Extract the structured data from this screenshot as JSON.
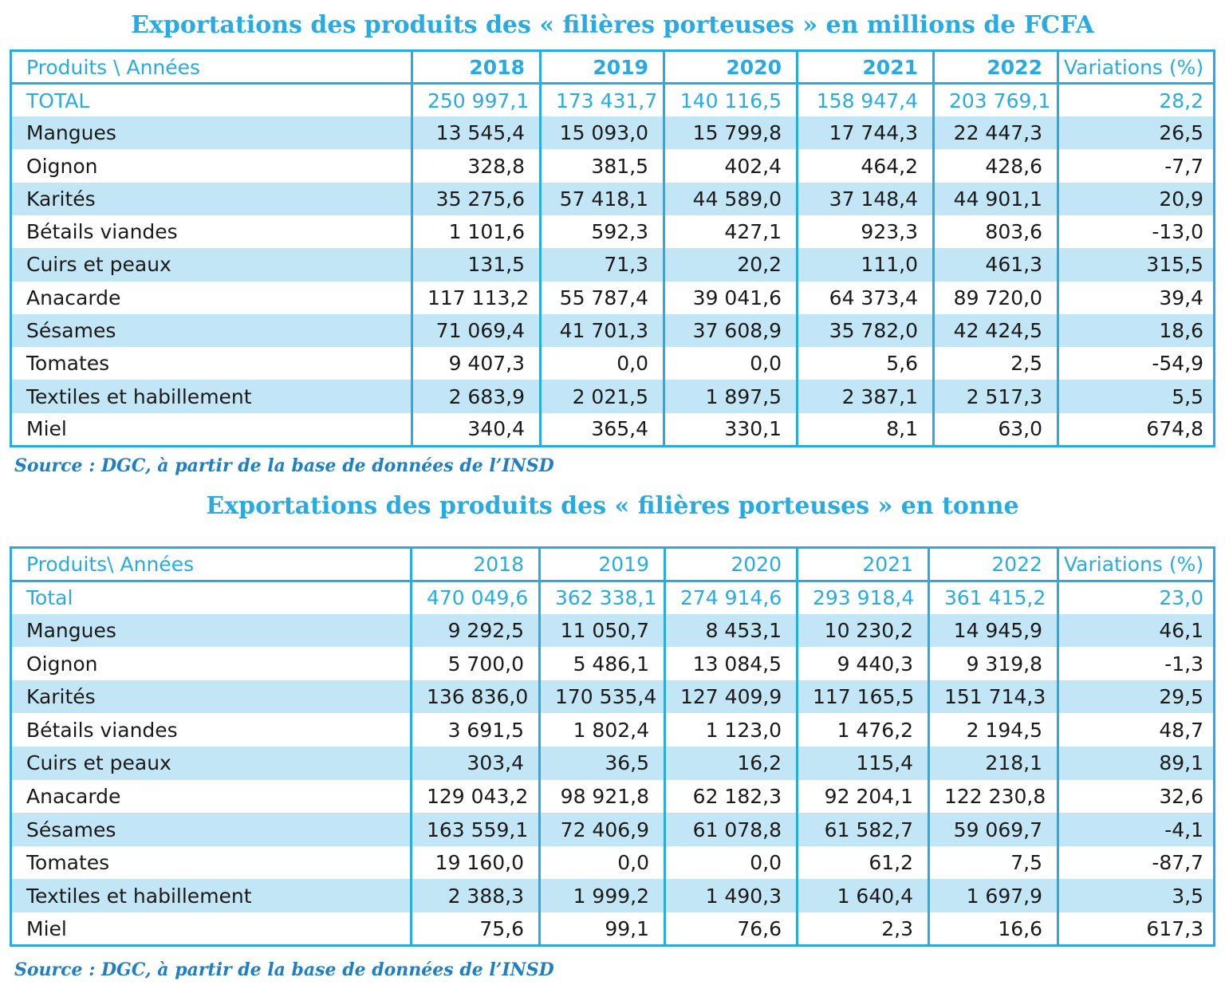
{
  "table1": {
    "title": "Exportations des produits des « filières porteuses » en millions de FCFA",
    "header": [
      "Produits \\ Années",
      "2018",
      "2019",
      "2020",
      "2021",
      "2022",
      "Variations (%)"
    ],
    "rows": [
      {
        "name": "TOTAL",
        "values": [
          "250 997,1",
          "173 431,7",
          "140 116,5",
          "158 947,4",
          "203 769,1",
          "28,2"
        ]
      },
      {
        "name": "Mangues",
        "values": [
          "13 545,4",
          "15 093,0",
          "15 799,8",
          "17 744,3",
          "22 447,3",
          "26,5"
        ]
      },
      {
        "name": "Oignon",
        "values": [
          "328,8",
          "381,5",
          "402,4",
          "464,2",
          "428,6",
          "-7,7"
        ]
      },
      {
        "name": "Karités",
        "values": [
          "35 275,6",
          "57 418,1",
          "44 589,0",
          "37 148,4",
          "44 901,1",
          "20,9"
        ]
      },
      {
        "name": "Bétails viandes",
        "values": [
          "1 101,6",
          "592,3",
          "427,1",
          "923,3",
          "803,6",
          "-13,0"
        ]
      },
      {
        "name": "Cuirs et peaux",
        "values": [
          "131,5",
          "71,3",
          "20,2",
          "111,0",
          "461,3",
          "315,5"
        ]
      },
      {
        "name": "Anacarde",
        "values": [
          "117 113,2",
          "55 787,4",
          "39 041,6",
          "64 373,4",
          "89 720,0",
          "39,4"
        ]
      },
      {
        "name": "Sésames",
        "values": [
          "71 069,4",
          "41 701,3",
          "37 608,9",
          "35 782,0",
          "42 424,5",
          "18,6"
        ]
      },
      {
        "name": "Tomates",
        "values": [
          "9 407,3",
          "0,0",
          "0,0",
          "5,6",
          "2,5",
          "-54,9"
        ]
      },
      {
        "name": "Textiles et habillement",
        "values": [
          "2 683,9",
          "2 021,5",
          "1 897,5",
          "2 387,1",
          "2 517,3",
          "5,5"
        ]
      },
      {
        "name": "Miel",
        "values": [
          "340,4",
          "365,4",
          "330,1",
          "8,1",
          "63,0",
          "674,8"
        ]
      }
    ],
    "source": "Source : DGC, à partir de la base de données de l’INSD"
  },
  "table2": {
    "title": "Exportations des produits des « filières porteuses » en tonne",
    "header": [
      "Produits\\ Années",
      "2018",
      "2019",
      "2020",
      "2021",
      "2022",
      "Variations (%)"
    ],
    "rows": [
      {
        "name": "Total",
        "values": [
          "470 049,6",
          "362 338,1",
          "274 914,6",
          "293 918,4",
          "361 415,2",
          "23,0"
        ]
      },
      {
        "name": "Mangues",
        "values": [
          "9 292,5",
          "11 050,7",
          "8 453,1",
          "10 230,2",
          "14 945,9",
          "46,1"
        ]
      },
      {
        "name": "Oignon",
        "values": [
          "5 700,0",
          "5 486,1",
          "13 084,5",
          "9 440,3",
          "9 319,8",
          "-1,3"
        ]
      },
      {
        "name": "Karités",
        "values": [
          "136 836,0",
          "170 535,4",
          "127 409,9",
          "117 165,5",
          "151 714,3",
          "29,5"
        ]
      },
      {
        "name": "Bétails viandes",
        "values": [
          "3 691,5",
          "1 802,4",
          "1 123,0",
          "1 476,2",
          "2 194,5",
          "48,7"
        ]
      },
      {
        "name": "Cuirs et peaux",
        "values": [
          "303,4",
          "36,5",
          "16,2",
          "115,4",
          "218,1",
          "89,1"
        ]
      },
      {
        "name": "Anacarde",
        "values": [
          "129 043,2",
          "98 921,8",
          "62 182,3",
          "92 204,1",
          "122 230,8",
          "32,6"
        ]
      },
      {
        "name": "Sésames",
        "values": [
          "163 559,1",
          "72 406,9",
          "61 078,8",
          "61 582,7",
          "59 069,7",
          "-4,1"
        ]
      },
      {
        "name": "Tomates",
        "values": [
          "19 160,0",
          "0,0",
          "0,0",
          "61,2",
          "7,5",
          "-87,7"
        ]
      },
      {
        "name": "Textiles et habillement",
        "values": [
          "2 388,3",
          "1 999,2",
          "1 490,3",
          "1 640,4",
          "1 697,9",
          "3,5"
        ]
      },
      {
        "name": "Miel",
        "values": [
          "75,6",
          "99,1",
          "76,6",
          "2,3",
          "16,6",
          "617,3"
        ]
      }
    ],
    "source": "Source : DGC, à partir de la base de données de l’INSD"
  },
  "colors": {
    "accent": "#29ABE2",
    "row_band": "#C2E6F6",
    "source": "#1F7FC2"
  }
}
